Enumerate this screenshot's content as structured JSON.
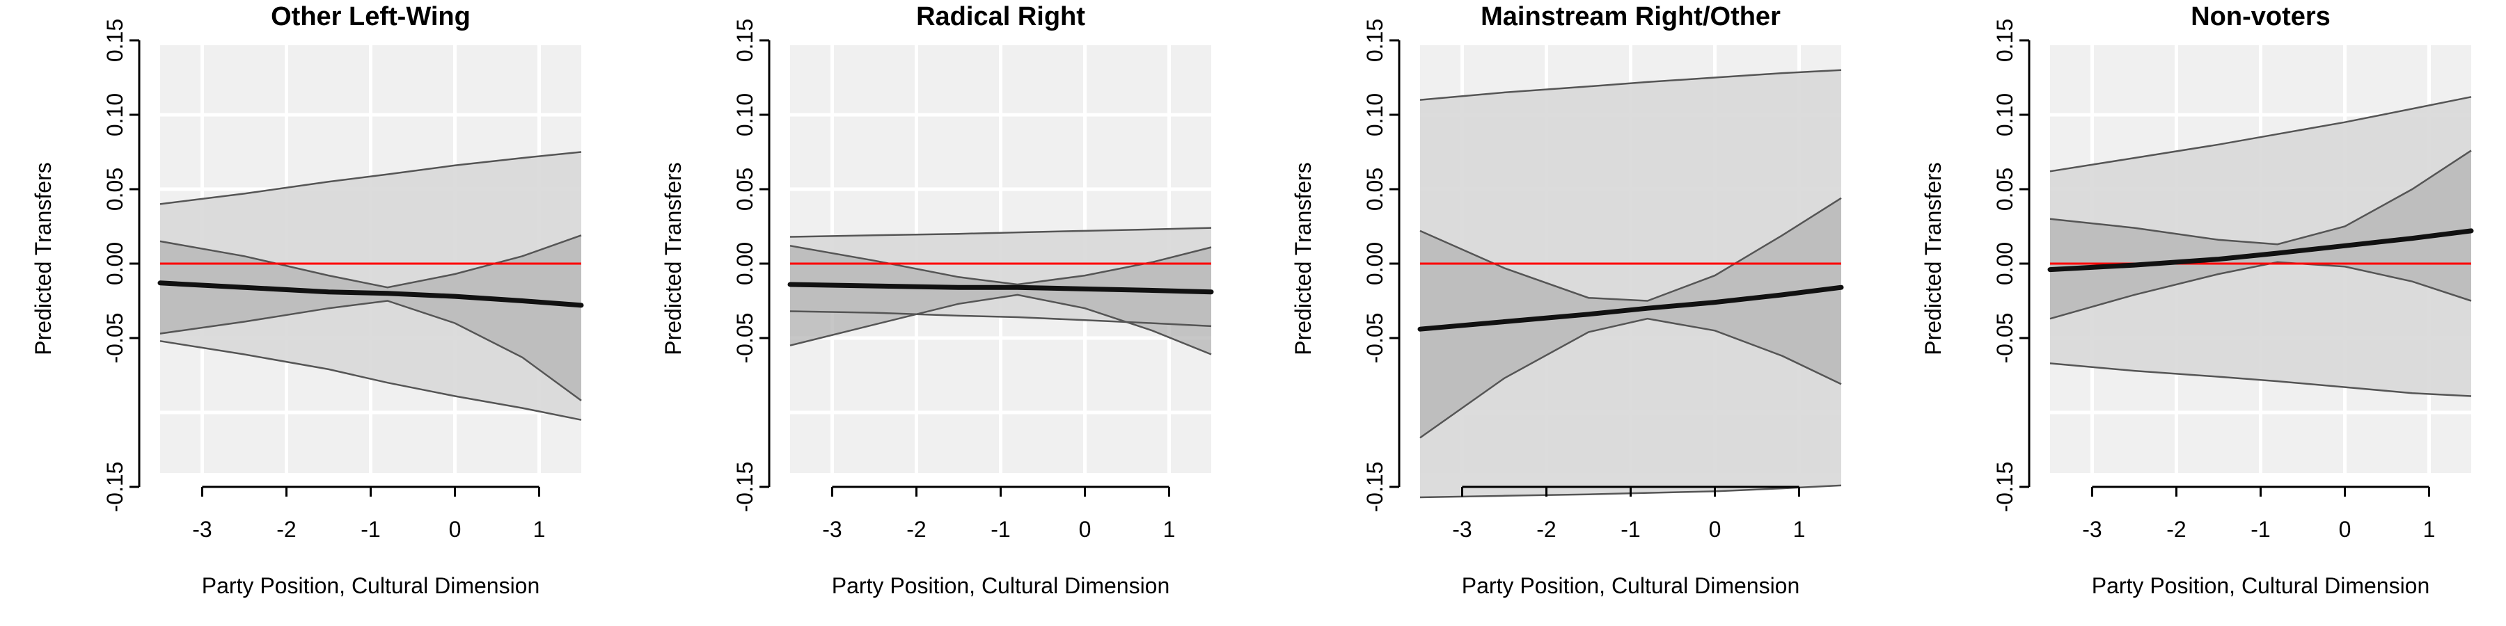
{
  "chart_data": [
    {
      "type": "line",
      "title": "Other Left-Wing",
      "xlabel": "Party Position, Cultural Dimension",
      "ylabel": "Predicted Transfers",
      "xlim": [
        -3.5,
        1.5
      ],
      "ylim": [
        -0.15,
        0.15
      ],
      "x_ticks": [
        "-3",
        "-2",
        "-1",
        "0",
        "1"
      ],
      "y_ticks": [
        "-0.15",
        "-0.05",
        "0.00",
        "0.05",
        "0.10",
        "0.15"
      ],
      "grid": true,
      "reference_line": 0,
      "x": [
        -3.5,
        -2.5,
        -1.5,
        -0.8,
        0,
        0.8,
        1.5
      ],
      "series": [
        {
          "estimate": [
            -0.013,
            -0.016,
            -0.019,
            -0.02,
            -0.022,
            -0.025,
            -0.028
          ]
        },
        {
          "ci_inner_upper": [
            0.015,
            0.005,
            -0.008,
            -0.016,
            -0.007,
            0.005,
            0.019
          ]
        },
        {
          "ci_inner_lower": [
            -0.047,
            -0.039,
            -0.03,
            -0.025,
            -0.04,
            -0.063,
            -0.092
          ]
        },
        {
          "ci_outer_upper": [
            0.04,
            0.047,
            0.055,
            0.06,
            0.066,
            0.071,
            0.075
          ]
        },
        {
          "ci_outer_lower": [
            -0.052,
            -0.061,
            -0.071,
            -0.08,
            -0.089,
            -0.097,
            -0.105
          ]
        }
      ]
    },
    {
      "type": "line",
      "title": "Radical Right",
      "xlabel": "Party Position, Cultural Dimension",
      "ylabel": "Predicted Transfers",
      "xlim": [
        -3.5,
        1.5
      ],
      "ylim": [
        -0.15,
        0.15
      ],
      "x_ticks": [
        "-3",
        "-2",
        "-1",
        "0",
        "1"
      ],
      "y_ticks": [
        "-0.15",
        "-0.05",
        "0.00",
        "0.05",
        "0.10",
        "0.15"
      ],
      "grid": true,
      "reference_line": 0,
      "x": [
        -3.5,
        -2.5,
        -1.5,
        -0.8,
        0,
        0.8,
        1.5
      ],
      "series": [
        {
          "estimate": [
            -0.014,
            -0.015,
            -0.016,
            -0.016,
            -0.017,
            -0.018,
            -0.019
          ]
        },
        {
          "ci_inner_upper": [
            0.012,
            0.002,
            -0.009,
            -0.014,
            -0.008,
            0.001,
            0.011
          ]
        },
        {
          "ci_inner_lower": [
            -0.055,
            -0.041,
            -0.027,
            -0.021,
            -0.03,
            -0.045,
            -0.061
          ]
        },
        {
          "ci_outer_upper": [
            0.018,
            0.019,
            0.02,
            0.021,
            0.022,
            0.023,
            0.024
          ]
        },
        {
          "ci_outer_lower": [
            -0.032,
            -0.033,
            -0.035,
            -0.036,
            -0.038,
            -0.04,
            -0.042
          ]
        }
      ]
    },
    {
      "type": "line",
      "title": "Mainstream Right/Other",
      "xlabel": "Party Position, Cultural Dimension",
      "ylabel": "Predicted Transfers",
      "xlim": [
        -3.5,
        1.5
      ],
      "ylim": [
        -0.15,
        0.15
      ],
      "x_ticks": [
        "-3",
        "-2",
        "-1",
        "0",
        "1"
      ],
      "y_ticks": [
        "-0.15",
        "-0.05",
        "0.00",
        "0.05",
        "0.10",
        "0.15"
      ],
      "grid": true,
      "reference_line": 0,
      "x": [
        -3.5,
        -2.5,
        -1.5,
        -0.8,
        0,
        0.8,
        1.5
      ],
      "series": [
        {
          "estimate": [
            -0.044,
            -0.039,
            -0.034,
            -0.03,
            -0.026,
            -0.021,
            -0.016
          ]
        },
        {
          "ci_inner_upper": [
            0.022,
            -0.003,
            -0.023,
            -0.025,
            -0.008,
            0.019,
            0.044
          ]
        },
        {
          "ci_inner_lower": [
            -0.117,
            -0.077,
            -0.046,
            -0.037,
            -0.045,
            -0.062,
            -0.081
          ]
        },
        {
          "ci_outer_upper": [
            0.11,
            0.115,
            0.119,
            0.122,
            0.125,
            0.128,
            0.13
          ]
        },
        {
          "ci_outer_lower": [
            -0.157,
            -0.156,
            -0.155,
            -0.154,
            -0.153,
            -0.151,
            -0.149
          ]
        }
      ]
    },
    {
      "type": "line",
      "title": "Non-voters",
      "xlabel": "Party Position, Cultural Dimension",
      "ylabel": "Predicted Transfers",
      "xlim": [
        -3.5,
        1.5
      ],
      "ylim": [
        -0.15,
        0.15
      ],
      "x_ticks": [
        "-3",
        "-2",
        "-1",
        "0",
        "1"
      ],
      "y_ticks": [
        "-0.15",
        "-0.05",
        "0.00",
        "0.05",
        "0.10",
        "0.15"
      ],
      "grid": true,
      "reference_line": 0,
      "x": [
        -3.5,
        -2.5,
        -1.5,
        -0.8,
        0,
        0.8,
        1.5
      ],
      "series": [
        {
          "estimate": [
            -0.004,
            -0.001,
            0.003,
            0.007,
            0.012,
            0.017,
            0.022
          ]
        },
        {
          "ci_inner_upper": [
            0.03,
            0.024,
            0.016,
            0.013,
            0.025,
            0.05,
            0.076
          ]
        },
        {
          "ci_inner_lower": [
            -0.037,
            -0.021,
            -0.007,
            0.001,
            -0.002,
            -0.012,
            -0.025
          ]
        },
        {
          "ci_outer_upper": [
            0.062,
            0.071,
            0.08,
            0.087,
            0.095,
            0.104,
            0.112
          ]
        },
        {
          "ci_outer_lower": [
            -0.067,
            -0.072,
            -0.076,
            -0.079,
            -0.083,
            -0.087,
            -0.089
          ]
        }
      ]
    }
  ],
  "colors": {
    "panel_background": "#f0f0f0",
    "grid": "#ffffff",
    "outer_band": "#d8d8d8",
    "inner_band": "#b4b4b4",
    "band_edge": "#555555",
    "estimate_line": "#111111",
    "reference_line": "#ff0000"
  }
}
